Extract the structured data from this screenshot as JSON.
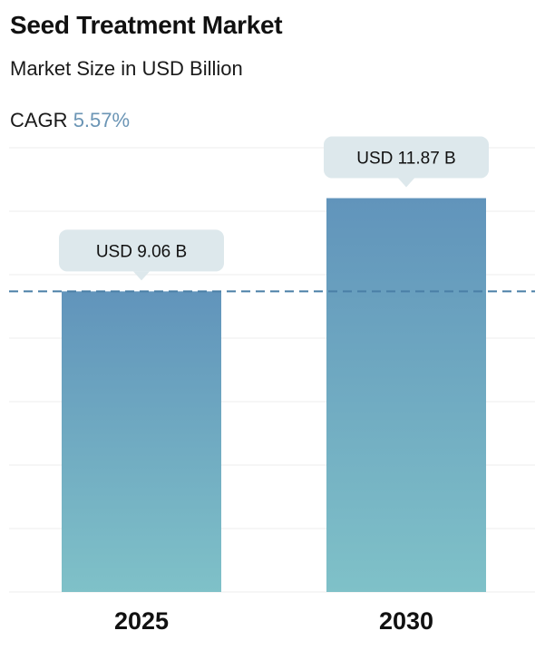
{
  "header": {
    "title": "Seed Treatment Market",
    "subtitle": "Market Size in USD Billion",
    "cagr_label": "CAGR",
    "cagr_value": "5.57%"
  },
  "colors": {
    "bar_top": "#6194bb",
    "bar_bottom": "#7fc1c8",
    "bubble_bg": "#dde8ec",
    "reference_line": "#4a7fa6",
    "grid": "#ececec",
    "cagr_accent": "#6b95b5"
  },
  "chart_data": {
    "type": "bar",
    "title": "Seed Treatment Market",
    "subtitle": "Market Size in USD Billion",
    "categories": [
      "2025",
      "2030"
    ],
    "values": [
      9.06,
      11.87
    ],
    "data_labels": [
      "USD 9.06 B",
      "USD 11.87 B"
    ],
    "ylim": [
      0,
      14
    ],
    "grid": true,
    "reference_line_value": 9.06,
    "cagr": "5.57%"
  }
}
